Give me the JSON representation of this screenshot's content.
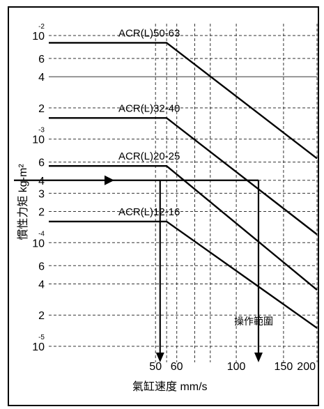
{
  "chart_data": {
    "type": "line",
    "title": "",
    "xlabel": "氣缸速度 mm/s",
    "ylabel": "慣性力矩 kg-m²",
    "x_scale": "log",
    "y_scale": "log",
    "xlim": [
      20,
      200
    ],
    "ylim": [
      7e-06,
      0.013
    ],
    "x_ticks": [
      {
        "value": 50,
        "label": "50"
      },
      {
        "value": 60,
        "label": "60"
      },
      {
        "value": 100,
        "label": "100"
      },
      {
        "value": 150,
        "label": "150"
      },
      {
        "value": 200,
        "label": "200"
      }
    ],
    "y_ticks": [
      {
        "value": 0.01,
        "label": "10",
        "exp": "-2"
      },
      {
        "value": 0.006,
        "label": "6",
        "exp": ""
      },
      {
        "value": 0.004,
        "label": "4",
        "exp": ""
      },
      {
        "value": 0.002,
        "label": "2",
        "exp": ""
      },
      {
        "value": 0.001,
        "label": "10",
        "exp": "-3"
      },
      {
        "value": 0.0006,
        "label": "6",
        "exp": ""
      },
      {
        "value": 0.0004,
        "label": "4",
        "exp": ""
      },
      {
        "value": 0.0003,
        "label": "3",
        "exp": ""
      },
      {
        "value": 0.0002,
        "label": "2",
        "exp": ""
      },
      {
        "value": 0.0001,
        "label": "10",
        "exp": "-4"
      },
      {
        "value": 6e-05,
        "label": "6",
        "exp": ""
      },
      {
        "value": 4e-05,
        "label": "4",
        "exp": ""
      },
      {
        "value": 2e-05,
        "label": "2",
        "exp": ""
      },
      {
        "value": 1e-05,
        "label": "10",
        "exp": "-5"
      }
    ],
    "x_gridlines": [
      50,
      55,
      60,
      70,
      80,
      100,
      150,
      200
    ],
    "series": [
      {
        "name": "ACR(L)50-63",
        "points": [
          [
            20,
            0.0085
          ],
          [
            55,
            0.0085
          ],
          [
            200,
            0.00065
          ]
        ]
      },
      {
        "name": "ACR(L)32-40",
        "points": [
          [
            20,
            0.0016
          ],
          [
            55,
            0.0016
          ],
          [
            200,
            0.00012
          ]
        ]
      },
      {
        "name": "ACR(L)20-25",
        "points": [
          [
            20,
            0.00055
          ],
          [
            55,
            0.00055
          ],
          [
            200,
            3.5e-05
          ]
        ]
      },
      {
        "name": "ACR(L)12-16",
        "points": [
          [
            20,
            0.00016
          ],
          [
            55,
            0.00016
          ],
          [
            200,
            1.5e-05
          ]
        ]
      }
    ],
    "example": {
      "inertia": 0.0004,
      "speed_min": 52,
      "speed_max": 121
    },
    "annotation": "操作範圍",
    "grid": true
  }
}
